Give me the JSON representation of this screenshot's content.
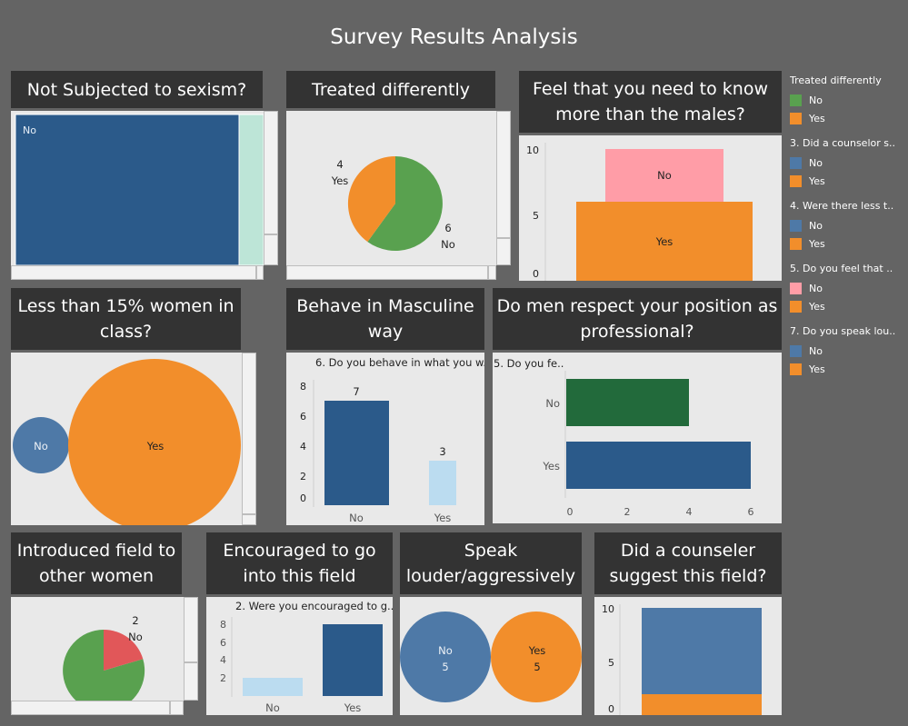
{
  "title": "Survey Results Analysis",
  "colors": {
    "green": "#59a14f",
    "orange": "#f28e2b",
    "blue": "#4e79a7",
    "darkblue": "#2b5a8a",
    "lightblue": "#bbdcf0",
    "pink": "#ff9da7",
    "red": "#e15759",
    "darkgreen": "#226a3b",
    "teal": "#bde5d7"
  },
  "panels": {
    "sexism": {
      "title": "Not Subjected to sexism?"
    },
    "treated": {
      "title": "Treated differently"
    },
    "feel": {
      "title": "Feel that you need to know more than the males?"
    },
    "less15": {
      "title": "Less than 15% women in class?"
    },
    "behave": {
      "title": "Behave in Masculine way"
    },
    "respect": {
      "title": "Do men respect your position as professional?"
    },
    "introduced": {
      "title": "Introduced field to other women"
    },
    "encouraged": {
      "title": "Encouraged to go into this field"
    },
    "speak": {
      "title": "Speak louder/aggressively"
    },
    "counselor": {
      "title": "Did a counseler suggest this field?"
    }
  },
  "legend": [
    {
      "title": "Treated differently",
      "items": [
        {
          "label": "No",
          "color": "#59a14f"
        },
        {
          "label": "Yes",
          "color": "#f28e2b"
        }
      ]
    },
    {
      "title": "3.  Did a counselor s..",
      "items": [
        {
          "label": "No",
          "color": "#4e79a7"
        },
        {
          "label": "Yes",
          "color": "#f28e2b"
        }
      ]
    },
    {
      "title": "4.  Were there less t..",
      "items": [
        {
          "label": "No",
          "color": "#4e79a7"
        },
        {
          "label": "Yes",
          "color": "#f28e2b"
        }
      ]
    },
    {
      "title": "5.  Do you feel that ..",
      "items": [
        {
          "label": "No",
          "color": "#ff9da7"
        },
        {
          "label": "Yes",
          "color": "#f28e2b"
        }
      ]
    },
    {
      "title": "7.  Do you speak lou..",
      "items": [
        {
          "label": "No",
          "color": "#4e79a7"
        },
        {
          "label": "Yes",
          "color": "#f28e2b"
        }
      ]
    }
  ],
  "chart_data": [
    {
      "id": "sexism",
      "type": "treemap",
      "title": "Not Subjected to sexism?",
      "categories": [
        "No"
      ],
      "labels": [
        "No"
      ]
    },
    {
      "id": "treated",
      "type": "pie",
      "title": "Treated differently",
      "categories": [
        "No",
        "Yes"
      ],
      "values": [
        6,
        4
      ],
      "value_labels": [
        "6",
        "4"
      ]
    },
    {
      "id": "feel",
      "type": "bar",
      "title": "Feel that you need to know more than the males?",
      "categories": [
        "Yes",
        "No"
      ],
      "values": [
        6,
        4
      ],
      "stacked": true,
      "ylim": [
        0,
        10
      ],
      "yticks": [
        "0",
        "5",
        "10"
      ]
    },
    {
      "id": "less15",
      "type": "bubble",
      "title": "Less than 15% women in class?",
      "categories": [
        "No",
        "Yes"
      ]
    },
    {
      "id": "behave",
      "type": "bar",
      "title": "Behave in Masculine way",
      "subtitle": "6.  Do you behave in what you w..",
      "categories": [
        "No",
        "Yes"
      ],
      "values": [
        7,
        3
      ],
      "value_labels": [
        "7",
        "3"
      ],
      "ylim": [
        0,
        8
      ],
      "yticks": [
        "0",
        "2",
        "4",
        "6",
        "8"
      ]
    },
    {
      "id": "respect",
      "type": "bar",
      "orientation": "horizontal",
      "title": "Do men respect your position as professional?",
      "subtitle": "5.  Do you fe..",
      "categories": [
        "No",
        "Yes"
      ],
      "values": [
        4,
        6
      ],
      "xlim": [
        0,
        6
      ],
      "xticks": [
        "0",
        "2",
        "4",
        "6"
      ]
    },
    {
      "id": "introduced",
      "type": "pie",
      "title": "Introduced field to other women",
      "categories": [
        "Yes",
        "No"
      ],
      "values": [
        8,
        2
      ],
      "value_labels": [
        "2"
      ]
    },
    {
      "id": "encouraged",
      "type": "bar",
      "title": "Encouraged to go into this field",
      "subtitle": "2.  Were you encouraged to g..",
      "categories": [
        "No",
        "Yes"
      ],
      "values": [
        2,
        8
      ],
      "ylim": [
        0,
        8
      ],
      "yticks": [
        "2",
        "4",
        "6",
        "8"
      ]
    },
    {
      "id": "speak",
      "type": "bubble",
      "title": "Speak louder/aggressively",
      "categories": [
        "No",
        "Yes"
      ],
      "values": [
        5,
        5
      ],
      "value_labels": [
        "5",
        "5"
      ]
    },
    {
      "id": "counselor",
      "type": "bar",
      "title": "Did a counseler suggest this field?",
      "categories": [
        "Yes",
        "No"
      ],
      "values": [
        2,
        8
      ],
      "stacked": true,
      "ylim": [
        0,
        10
      ],
      "yticks": [
        "0",
        "5",
        "10"
      ]
    }
  ]
}
